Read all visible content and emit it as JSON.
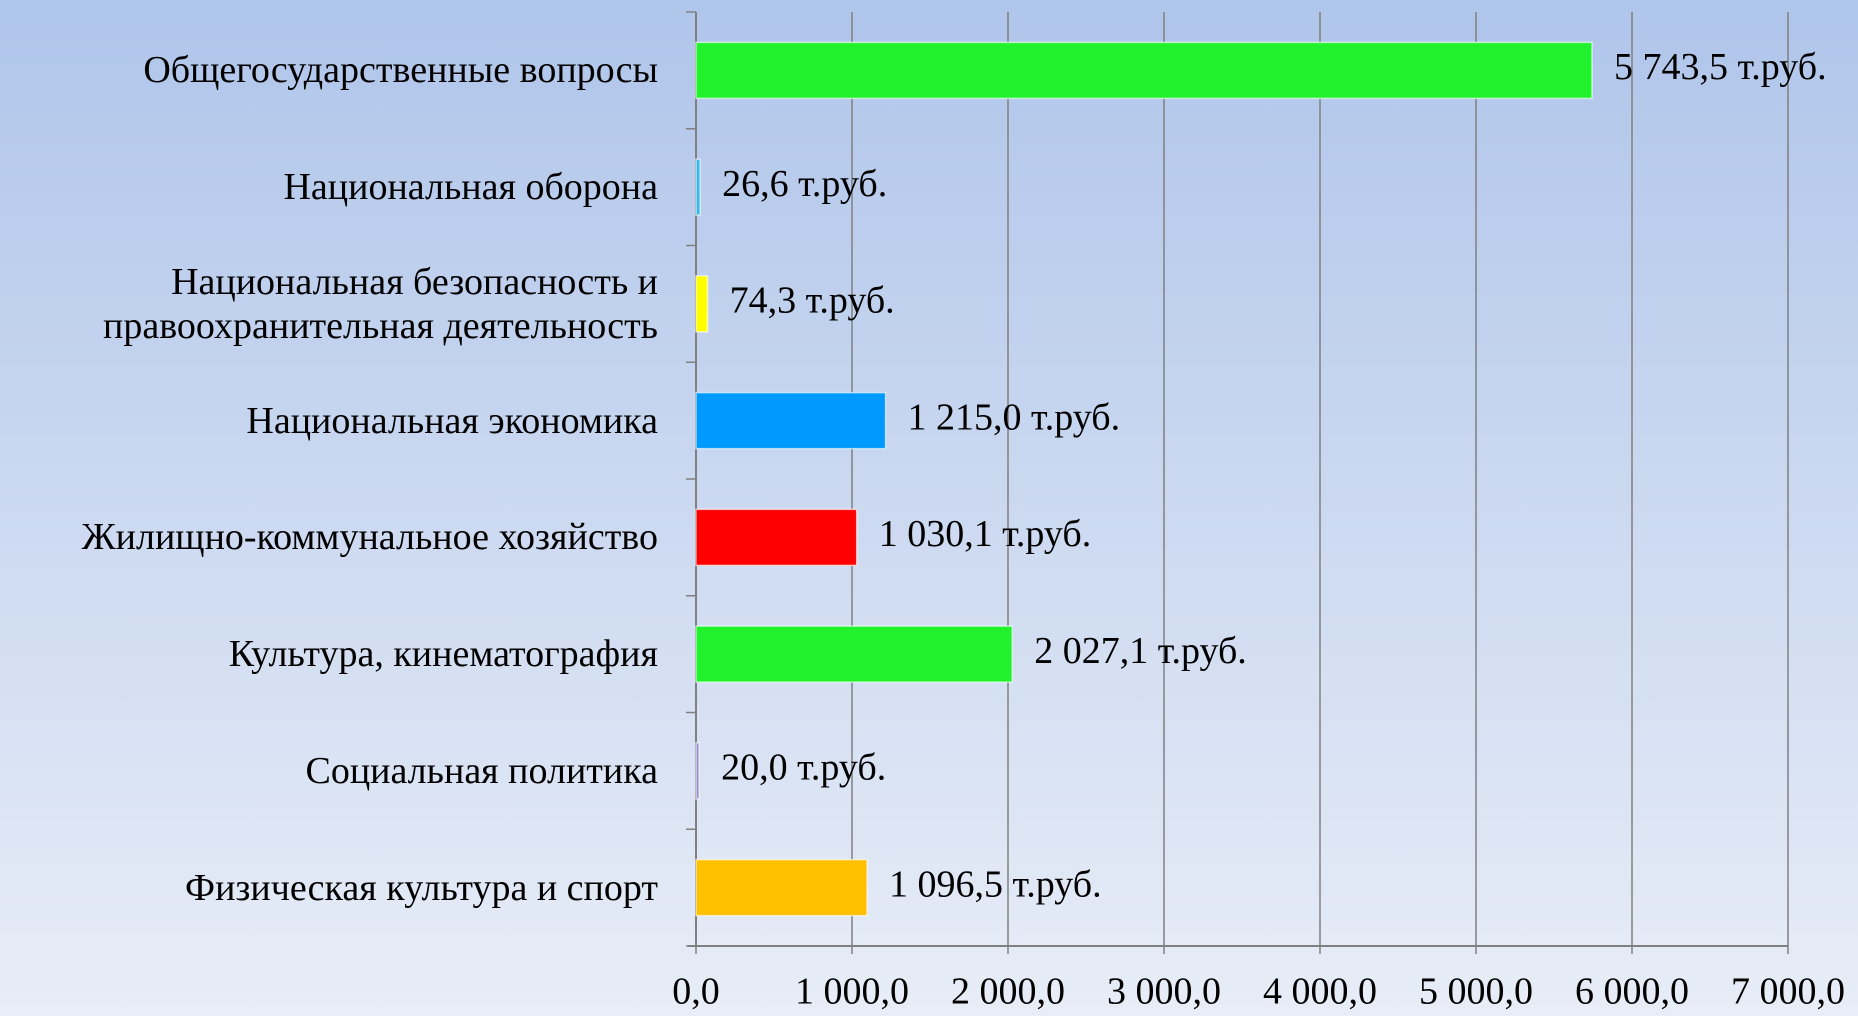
{
  "chart_data": {
    "type": "barh",
    "categories": [
      "Общегосударственные вопросы",
      "Национальная оборона",
      "Национальная безопасность и\nправоохранительная деятельность",
      "Национальная экономика",
      "Жилищно-коммунальное хозяйство",
      "Культура, кинематография",
      "Социальная политика",
      "Физическая культура и спорт"
    ],
    "values": [
      5743.5,
      26.6,
      74.3,
      1215.0,
      1030.1,
      2027.1,
      20.0,
      1096.5
    ],
    "value_labels": [
      "5 743,5 т.руб.",
      "26,6 т.руб.",
      "74,3 т.руб.",
      "1 215,0 т.руб.",
      "1 030,1 т.руб.",
      "2 027,1 т.руб.",
      "20,0 т.руб.",
      "1 096,5 т.руб."
    ],
    "colors": [
      "#22f22e",
      "#3ab8e8",
      "#ffff00",
      "#0099ff",
      "#ff0000",
      "#22f22e",
      "#9a8fd0",
      "#ffc000"
    ],
    "xlim": [
      0,
      7000
    ],
    "xticks": [
      {
        "value": 0,
        "label": "0,0"
      },
      {
        "value": 1000,
        "label": "1 000,0"
      },
      {
        "value": 2000,
        "label": "2 000,0"
      },
      {
        "value": 3000,
        "label": "3 000,0"
      },
      {
        "value": 4000,
        "label": "4 000,0"
      },
      {
        "value": 5000,
        "label": "5 000,0"
      },
      {
        "value": 6000,
        "label": "6 000,0"
      },
      {
        "value": 7000,
        "label": "7 000,0"
      }
    ],
    "grid": true
  }
}
